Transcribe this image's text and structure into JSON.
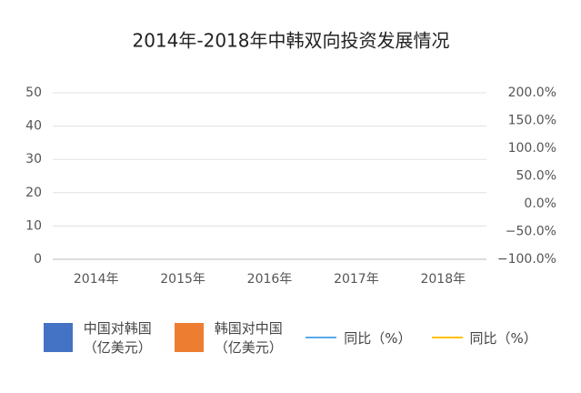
{
  "chart_data": {
    "type": "bar-line",
    "title": "2014年-2018年中韩双向投资发展情况",
    "categories": [
      "2014年",
      "2015年",
      "2016年",
      "2017年",
      "2018年"
    ],
    "series": [
      {
        "name": "中国对韩国（亿美元）",
        "color": "#4472c4",
        "type": "bar",
        "values": [
          null,
          null,
          null,
          null,
          null
        ]
      },
      {
        "name": "韩国对中国（亿美元）",
        "color": "#ed7d31",
        "type": "bar",
        "values": [
          null,
          null,
          null,
          null,
          null
        ]
      },
      {
        "name": "同比（%）",
        "color": "#5aa9e6",
        "type": "line",
        "axis": "y2",
        "values": [
          null,
          null,
          null,
          null,
          null
        ]
      },
      {
        "name": "同比（%）",
        "color": "#ffc000",
        "type": "line",
        "axis": "y2",
        "values": [
          null,
          null,
          null,
          null,
          null
        ]
      }
    ],
    "ylim": [
      0,
      50
    ],
    "yticks": [
      0,
      10,
      20,
      30,
      40,
      50
    ],
    "y2lim": [
      -100,
      200
    ],
    "y2ticks": [
      {
        "value": -100,
        "label": "−100.0%"
      },
      {
        "value": -50,
        "label": "−50.0%"
      },
      {
        "value": 0,
        "label": "0.0%"
      },
      {
        "value": 50,
        "label": "50.0%"
      },
      {
        "value": 100,
        "label": "100.0%"
      },
      {
        "value": 150,
        "label": "150.0%"
      },
      {
        "value": 200,
        "label": "200.0%"
      }
    ],
    "grid": true
  }
}
